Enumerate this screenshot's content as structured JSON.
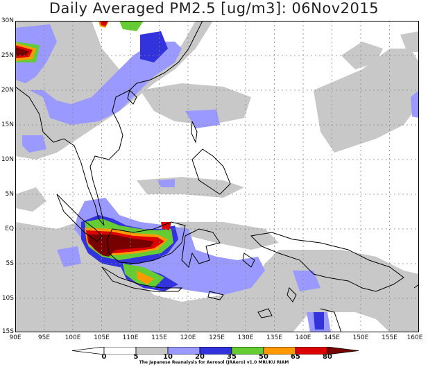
{
  "title": "Daily Averaged PM2.5 [ug/m3]: 06Nov2015",
  "lat_labels": [
    "30N",
    "25N",
    "20N",
    "15N",
    "10N",
    "5N",
    "EQ",
    "5S",
    "10S",
    "15S"
  ],
  "lon_labels": [
    "90E",
    "95E",
    "100E",
    "105E",
    "110E",
    "115E",
    "120E",
    "125E",
    "130E",
    "135E",
    "140E",
    "145E",
    "150E",
    "155E",
    "160E"
  ],
  "colorbar": {
    "levels": [
      "0",
      "5",
      "10",
      "20",
      "35",
      "50",
      "65",
      "80"
    ],
    "colors": [
      "#ffffff",
      "#ffffff",
      "#c8c8c8",
      "#9999ff",
      "#3333dd",
      "#66cc33",
      "#ff9900",
      "#dd0000",
      "#770000"
    ]
  },
  "credit": "The Japanese Reanalysis for Aerosol (JRAero) v1.0 MRI/KU RIAM"
}
